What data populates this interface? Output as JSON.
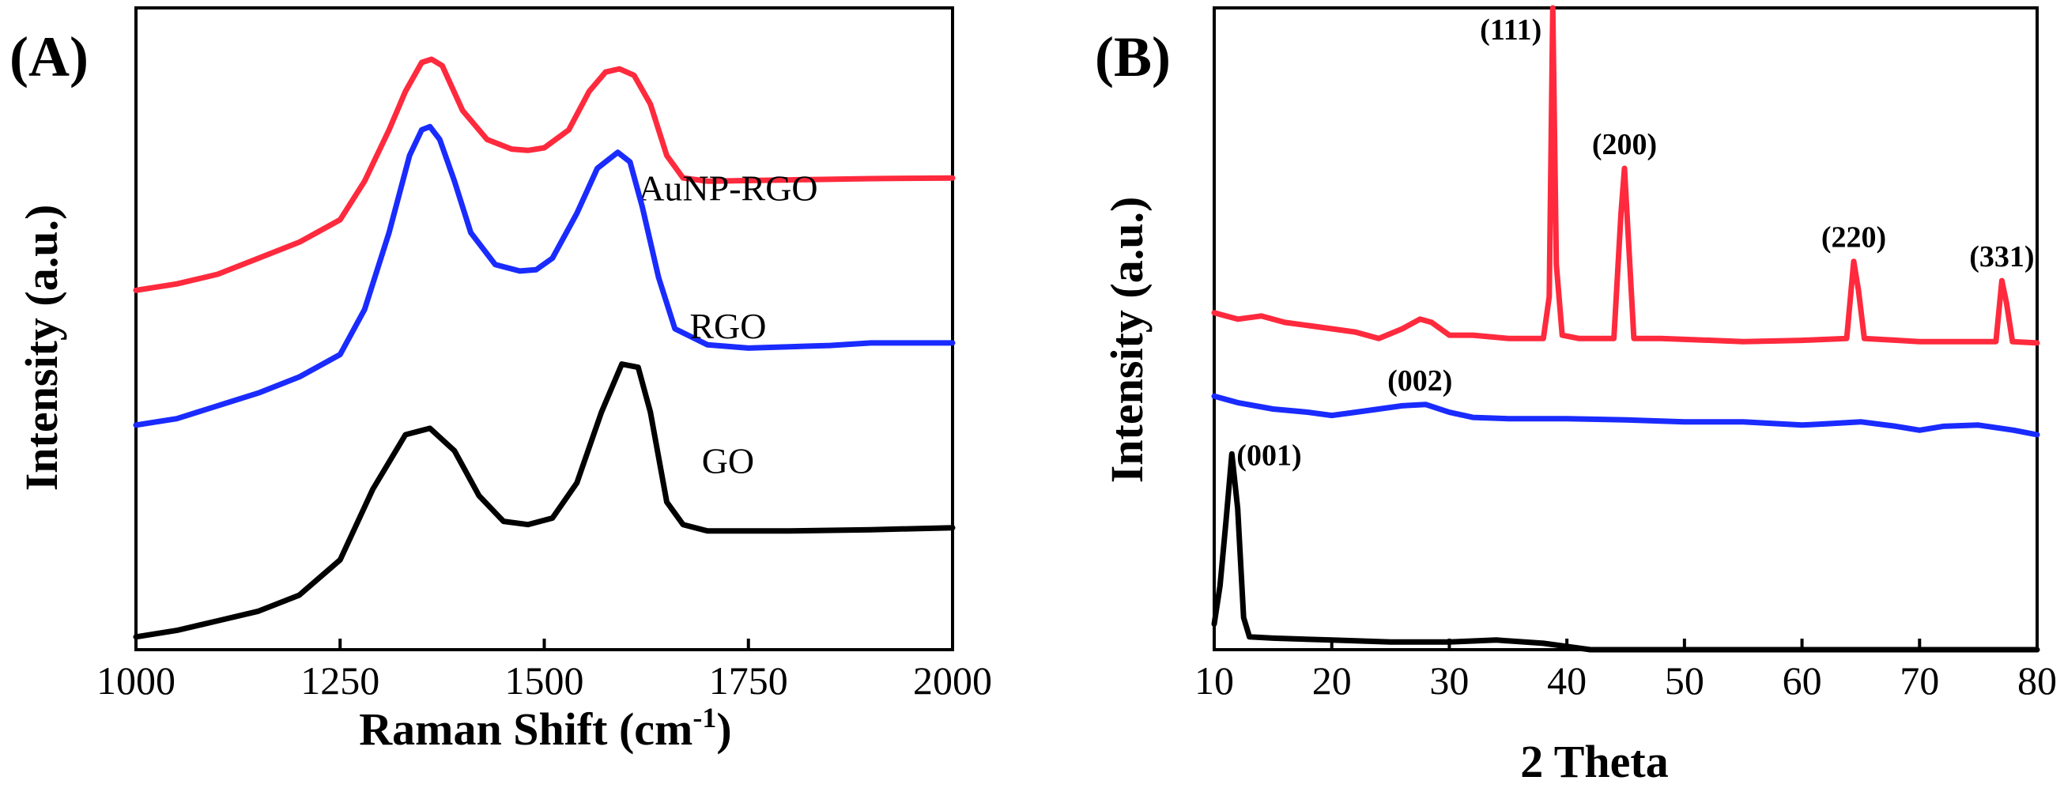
{
  "chart_data": [
    {
      "panel": "(A)",
      "type": "line",
      "xlabel": "Raman Shift (cm",
      "xlabel_sup": "-1",
      "xlabel_end": ")",
      "ylabel": "Intensity (a.u.)",
      "xlim": [
        1000,
        2000
      ],
      "ylim": [
        0,
        10
      ],
      "xticks": [
        "1000",
        "1250",
        "1500",
        "1750",
        "2000"
      ],
      "xtick_values": [
        1000,
        1250,
        1500,
        1750,
        2000
      ],
      "grid": false,
      "series": [
        {
          "name": "AuNP-RGO",
          "color": "#ff2a3d",
          "label_x": 1725,
          "label_y": 7.0,
          "x": [
            1000,
            1050,
            1100,
            1150,
            1200,
            1250,
            1280,
            1310,
            1330,
            1350,
            1362,
            1375,
            1400,
            1430,
            1460,
            1480,
            1500,
            1530,
            1555,
            1575,
            1592,
            1610,
            1630,
            1650,
            1670,
            1700,
            1800,
            1900,
            2000
          ],
          "y": [
            5.6,
            5.7,
            5.85,
            6.1,
            6.35,
            6.7,
            7.3,
            8.1,
            8.7,
            9.15,
            9.2,
            9.1,
            8.4,
            7.95,
            7.8,
            7.78,
            7.82,
            8.1,
            8.7,
            9.0,
            9.05,
            8.95,
            8.5,
            7.7,
            7.35,
            7.3,
            7.32,
            7.34,
            7.35
          ]
        },
        {
          "name": "RGO",
          "color": "#1a2bff",
          "label_x": 1725,
          "label_y": 4.85,
          "x": [
            1000,
            1050,
            1100,
            1150,
            1200,
            1250,
            1280,
            1310,
            1335,
            1350,
            1360,
            1372,
            1390,
            1410,
            1440,
            1470,
            1490,
            1510,
            1540,
            1565,
            1590,
            1605,
            1620,
            1640,
            1660,
            1700,
            1750,
            1800,
            1850,
            1900,
            2000
          ],
          "y": [
            3.5,
            3.6,
            3.8,
            4.0,
            4.25,
            4.6,
            5.3,
            6.5,
            7.7,
            8.1,
            8.15,
            7.95,
            7.3,
            6.5,
            6.0,
            5.9,
            5.92,
            6.1,
            6.8,
            7.5,
            7.75,
            7.6,
            6.9,
            5.8,
            5.0,
            4.75,
            4.7,
            4.72,
            4.74,
            4.78,
            4.78
          ]
        },
        {
          "name": "GO",
          "color": "#000000",
          "label_x": 1725,
          "label_y": 2.75,
          "x": [
            1000,
            1050,
            1100,
            1150,
            1200,
            1250,
            1290,
            1330,
            1360,
            1390,
            1420,
            1450,
            1480,
            1510,
            1540,
            1570,
            1595,
            1615,
            1630,
            1650,
            1670,
            1700,
            1800,
            1900,
            2000
          ],
          "y": [
            0.2,
            0.3,
            0.45,
            0.6,
            0.85,
            1.4,
            2.5,
            3.35,
            3.45,
            3.1,
            2.4,
            2.0,
            1.95,
            2.05,
            2.6,
            3.7,
            4.45,
            4.4,
            3.7,
            2.3,
            1.95,
            1.85,
            1.85,
            1.87,
            1.9
          ]
        }
      ]
    },
    {
      "panel": "(B)",
      "type": "line",
      "xlabel": "2 Theta",
      "ylabel": "Intensity (a.u.)",
      "xlim": [
        10,
        80
      ],
      "ylim": [
        0,
        10
      ],
      "xticks": [
        "10",
        "20",
        "30",
        "40",
        "50",
        "60",
        "70",
        "80"
      ],
      "xtick_values": [
        10,
        20,
        30,
        40,
        50,
        60,
        70,
        80
      ],
      "grid": false,
      "series": [
        {
          "name": "AuNP-RGO",
          "color": "#ff2a3d",
          "x": [
            10,
            12,
            14,
            16,
            18,
            20,
            22,
            24,
            26,
            27.5,
            28.5,
            30,
            32,
            35,
            38,
            38.5,
            38.8,
            39.1,
            39.6,
            41,
            44,
            44.6,
            44.9,
            45.2,
            45.7,
            48,
            55,
            60,
            63.8,
            64.4,
            64.8,
            65.3,
            70,
            76.5,
            77.0,
            77.4,
            77.9,
            80
          ],
          "y": [
            5.25,
            5.15,
            5.2,
            5.1,
            5.05,
            5.0,
            4.95,
            4.85,
            5.0,
            5.15,
            5.1,
            4.9,
            4.9,
            4.85,
            4.85,
            5.5,
            10.0,
            6.0,
            4.9,
            4.85,
            4.85,
            6.8,
            7.5,
            6.5,
            4.85,
            4.85,
            4.8,
            4.82,
            4.85,
            6.05,
            5.6,
            4.85,
            4.8,
            4.8,
            5.75,
            5.4,
            4.8,
            4.78
          ]
        },
        {
          "name": "RGO",
          "color": "#1a2bff",
          "x": [
            10,
            12,
            15,
            18,
            20,
            22,
            24,
            26,
            28,
            30,
            32,
            35,
            40,
            45,
            50,
            55,
            60,
            62,
            65,
            68,
            70,
            72,
            75,
            78,
            80
          ],
          "y": [
            3.95,
            3.85,
            3.75,
            3.7,
            3.65,
            3.7,
            3.75,
            3.8,
            3.82,
            3.7,
            3.62,
            3.6,
            3.6,
            3.58,
            3.55,
            3.55,
            3.5,
            3.52,
            3.55,
            3.48,
            3.42,
            3.48,
            3.5,
            3.42,
            3.35
          ]
        },
        {
          "name": "GO",
          "color": "#000000",
          "x": [
            10,
            10.5,
            11,
            11.5,
            12,
            12.5,
            13,
            15,
            20,
            25,
            30,
            34,
            38,
            42,
            50,
            60,
            70,
            80
          ],
          "y": [
            0.4,
            1.0,
            2.0,
            3.05,
            2.2,
            0.5,
            0.2,
            0.18,
            0.15,
            0.12,
            0.12,
            0.15,
            0.1,
            0.0,
            0.0,
            0.0,
            0.0,
            0.0
          ]
        }
      ],
      "peak_labels": [
        {
          "text": "(111)",
          "x": 38.8,
          "y": 10.0,
          "side": "left"
        },
        {
          "text": "(200)",
          "x": 44.9,
          "y": 7.5,
          "side": "center"
        },
        {
          "text": "(220)",
          "x": 64.4,
          "y": 6.05,
          "side": "center"
        },
        {
          "text": "(331)",
          "x": 77.0,
          "y": 5.75,
          "side": "center"
        },
        {
          "text": "(002)",
          "x": 27.5,
          "y": 3.82,
          "side": "center"
        },
        {
          "text": "(001)",
          "x": 11.5,
          "y": 3.05,
          "side": "right"
        }
      ]
    }
  ]
}
